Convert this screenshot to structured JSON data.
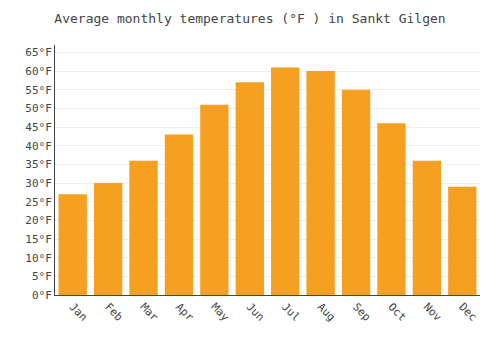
{
  "chart_data": {
    "type": "bar",
    "title": "Average monthly temperatures (°F ) in Sankt Gilgen",
    "categories": [
      "Jan",
      "Feb",
      "Mar",
      "Apr",
      "May",
      "Jun",
      "Jul",
      "Aug",
      "Sep",
      "Oct",
      "Nov",
      "Dec"
    ],
    "values": [
      27,
      30,
      36,
      43,
      51,
      57,
      61,
      60,
      55,
      46,
      36,
      29
    ],
    "color": "#F5A020",
    "ylim": [
      0,
      67
    ],
    "yticks": [
      {
        "value": 0,
        "label": "0°F"
      },
      {
        "value": 5,
        "label": "5°F"
      },
      {
        "value": 10,
        "label": "10°F"
      },
      {
        "value": 15,
        "label": "15°F"
      },
      {
        "value": 20,
        "label": "20°F"
      },
      {
        "value": 25,
        "label": "25°F"
      },
      {
        "value": 30,
        "label": "30°F"
      },
      {
        "value": 35,
        "label": "35°F"
      },
      {
        "value": 40,
        "label": "40°F"
      },
      {
        "value": 45,
        "label": "45°F"
      },
      {
        "value": 50,
        "label": "50°F"
      },
      {
        "value": 55,
        "label": "55°F"
      },
      {
        "value": 60,
        "label": "60°F"
      },
      {
        "value": 65,
        "label": "65°F"
      }
    ],
    "grid": true
  }
}
